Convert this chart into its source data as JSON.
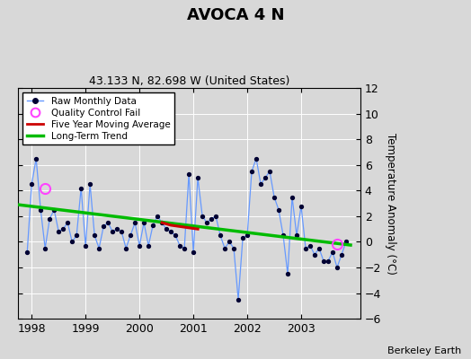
{
  "title": "AVOCA 4 N",
  "subtitle": "43.133 N, 82.698 W (United States)",
  "ylabel": "Temperature Anomaly (°C)",
  "credit": "Berkeley Earth",
  "ylim": [
    -6,
    12
  ],
  "yticks": [
    -6,
    -4,
    -2,
    0,
    2,
    4,
    6,
    8,
    10,
    12
  ],
  "background_color": "#d8d8d8",
  "plot_bg_color": "#d8d8d8",
  "raw_line_color": "#6699ff",
  "raw_dot_color": "#000033",
  "qc_fail_color": "#ff44ff",
  "moving_avg_color": "#cc0000",
  "trend_color": "#00bb00",
  "raw_data": {
    "times": [
      1997.917,
      1998.0,
      1998.083,
      1998.167,
      1998.25,
      1998.333,
      1998.417,
      1998.5,
      1998.583,
      1998.667,
      1998.75,
      1998.833,
      1998.917,
      1999.0,
      1999.083,
      1999.167,
      1999.25,
      1999.333,
      1999.417,
      1999.5,
      1999.583,
      1999.667,
      1999.75,
      1999.833,
      1999.917,
      2000.0,
      2000.083,
      2000.167,
      2000.25,
      2000.333,
      2000.417,
      2000.5,
      2000.583,
      2000.667,
      2000.75,
      2000.833,
      2000.917,
      2001.0,
      2001.083,
      2001.167,
      2001.25,
      2001.333,
      2001.417,
      2001.5,
      2001.583,
      2001.667,
      2001.75,
      2001.833,
      2001.917,
      2002.0,
      2002.083,
      2002.167,
      2002.25,
      2002.333,
      2002.417,
      2002.5,
      2002.583,
      2002.667,
      2002.75,
      2002.833,
      2002.917,
      2003.0,
      2003.083,
      2003.167,
      2003.25,
      2003.333,
      2003.417,
      2003.5,
      2003.583,
      2003.667,
      2003.75,
      2003.833
    ],
    "values": [
      -0.8,
      4.5,
      6.5,
      2.5,
      -0.5,
      1.8,
      2.5,
      0.8,
      1.0,
      1.5,
      0.0,
      0.5,
      4.2,
      -0.3,
      4.5,
      0.5,
      -0.5,
      1.2,
      1.5,
      0.8,
      1.0,
      0.8,
      -0.5,
      0.5,
      1.5,
      -0.3,
      1.5,
      -0.3,
      1.3,
      2.0,
      1.5,
      1.0,
      0.8,
      0.5,
      -0.3,
      -0.5,
      5.3,
      -0.8,
      5.0,
      2.0,
      1.5,
      1.8,
      2.0,
      0.5,
      -0.5,
      0.0,
      -0.5,
      -4.5,
      0.3,
      0.5,
      5.5,
      6.5,
      4.5,
      5.0,
      5.5,
      3.5,
      2.5,
      0.5,
      -2.5,
      3.5,
      0.5,
      2.8,
      -0.5,
      -0.3,
      -1.0,
      -0.5,
      -1.5,
      -1.5,
      -0.8,
      -2.0,
      -1.0,
      0.0
    ]
  },
  "qc_fail_points": [
    {
      "time": 1998.25,
      "value": 4.2
    },
    {
      "time": 2003.667,
      "value": -0.15
    }
  ],
  "moving_avg": {
    "times": [
      2000.417,
      2000.5,
      2000.583,
      2000.667,
      2000.75,
      2000.833,
      2000.917,
      2001.0,
      2001.083
    ],
    "values": [
      1.5,
      1.4,
      1.3,
      1.25,
      1.2,
      1.15,
      1.1,
      1.05,
      1.0
    ]
  },
  "trend": {
    "times": [
      1997.75,
      2003.917
    ],
    "values": [
      2.9,
      -0.25
    ]
  },
  "xlim": [
    1997.75,
    2004.1
  ],
  "xticks": [
    1998,
    1999,
    2000,
    2001,
    2002,
    2003
  ],
  "xticklabels": [
    "1998",
    "1999",
    "2000",
    "2001",
    "2002",
    "2003"
  ]
}
